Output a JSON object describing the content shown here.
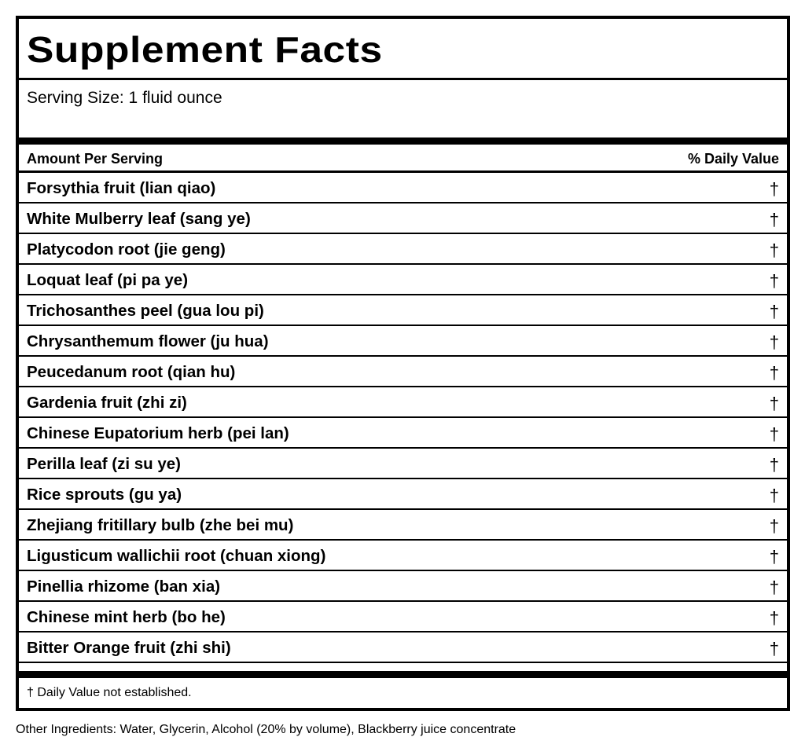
{
  "panel": {
    "title": "Supplement Facts",
    "serving_size": "Serving Size: 1 fluid ounce",
    "amount_header": "Amount Per Serving",
    "dv_header": "% Daily Value",
    "ingredients": [
      {
        "name": "Forsythia fruit (lian qiao)",
        "dv": "†"
      },
      {
        "name": "White Mulberry leaf (sang ye)",
        "dv": "†"
      },
      {
        "name": "Platycodon root (jie geng)",
        "dv": "†"
      },
      {
        "name": "Loquat leaf (pi pa ye)",
        "dv": "†"
      },
      {
        "name": "Trichosanthes peel (gua lou pi)",
        "dv": "†"
      },
      {
        "name": "Chrysanthemum flower (ju hua)",
        "dv": "†"
      },
      {
        "name": "Peucedanum root (qian hu)",
        "dv": "†"
      },
      {
        "name": "Gardenia fruit (zhi zi)",
        "dv": "†"
      },
      {
        "name": "Chinese Eupatorium herb (pei lan)",
        "dv": "†"
      },
      {
        "name": "Perilla leaf (zi su ye)",
        "dv": "†"
      },
      {
        "name": "Rice sprouts (gu ya)",
        "dv": "†"
      },
      {
        "name": "Zhejiang fritillary bulb (zhe bei mu)",
        "dv": "†"
      },
      {
        "name": "Ligusticum wallichii root (chuan xiong)",
        "dv": "†"
      },
      {
        "name": "Pinellia rhizome (ban xia)",
        "dv": "†"
      },
      {
        "name": "Chinese mint herb (bo he)",
        "dv": "†"
      },
      {
        "name": "Bitter Orange fruit (zhi shi)",
        "dv": "†"
      }
    ],
    "footnote": "† Daily Value not established."
  },
  "other_ingredients": "Other Ingredients: Water, Glycerin, Alcohol (20% by volume), Blackberry juice concentrate"
}
